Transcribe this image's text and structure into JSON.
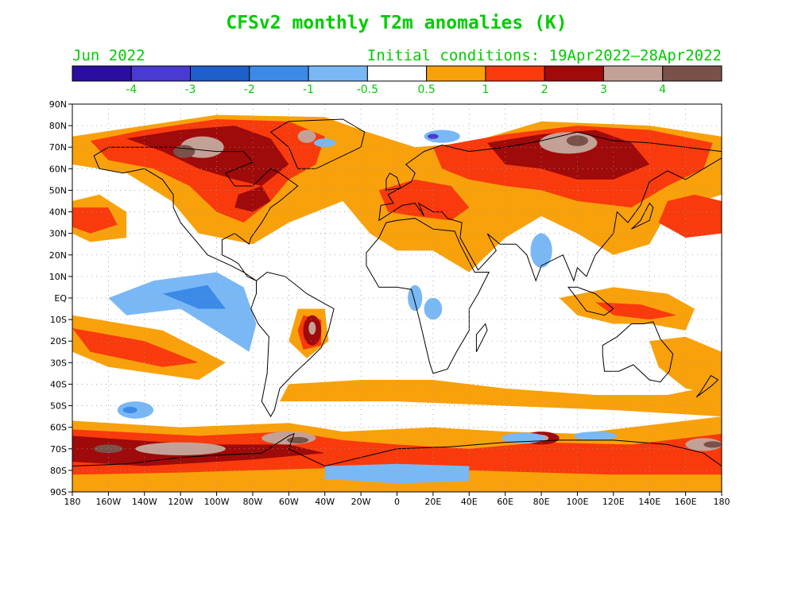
{
  "title": "CFSv2 monthly T2m anomalies (K)",
  "valid_month": "Jun 2022",
  "initial_conditions": "Initial conditions: 19Apr2022—28Apr2022",
  "colorbar": {
    "labels": [
      "-4",
      "-3",
      "-2",
      "-1",
      "-0.5",
      "0.5",
      "1",
      "2",
      "3",
      "4"
    ],
    "colors": [
      "#2a0e9e",
      "#4a3bd0",
      "#1f5fc9",
      "#3c8ae8",
      "#7ab8f5",
      "#ffffff",
      "#f9a10b",
      "#f93a0c",
      "#9f0a0a",
      "#c4a196",
      "#7a5149"
    ]
  },
  "latitude_labels": [
    "90N",
    "80N",
    "70N",
    "60N",
    "50N",
    "40N",
    "30N",
    "20N",
    "10N",
    "EQ",
    "10S",
    "20S",
    "30S",
    "40S",
    "50S",
    "60S",
    "70S",
    "80S",
    "90S"
  ],
  "longitude_labels": [
    "180",
    "160W",
    "140W",
    "120W",
    "100W",
    "80W",
    "60W",
    "40W",
    "20W",
    "0",
    "20E",
    "40E",
    "60E",
    "80E",
    "100E",
    "120E",
    "140E",
    "160E",
    "180"
  ],
  "colors": {
    "text_green": "#00cc00",
    "frame": "#000000",
    "grid": "#999999"
  }
}
